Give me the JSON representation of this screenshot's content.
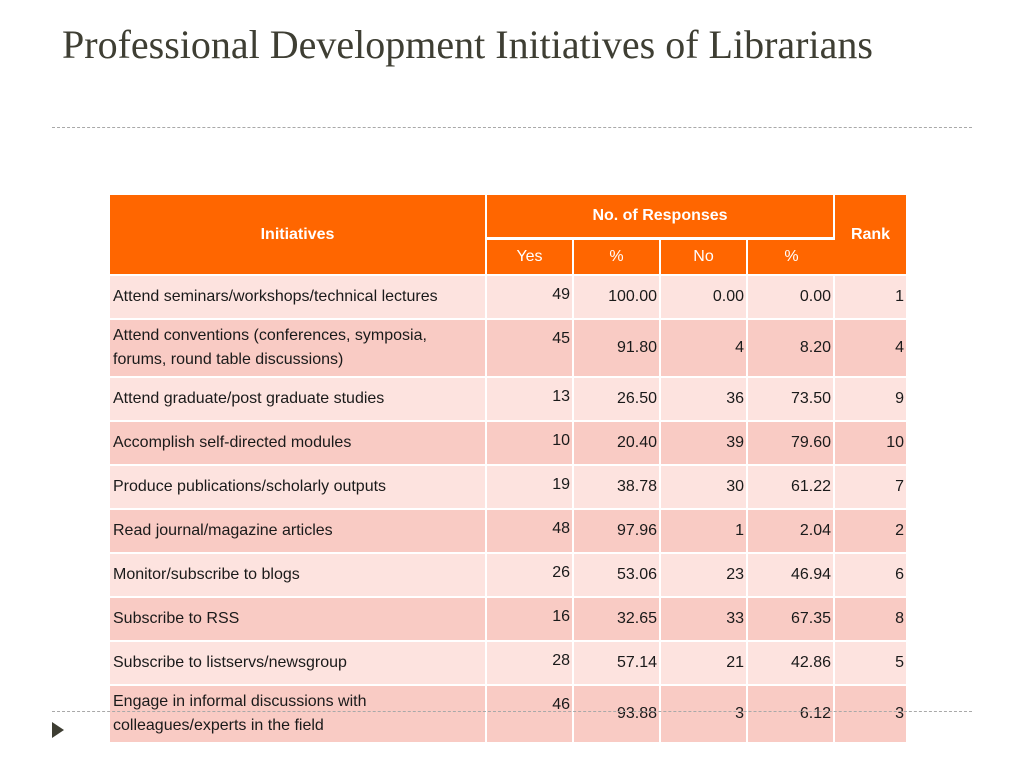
{
  "slide": {
    "title": "Professional Development Initiatives of Librarians"
  },
  "table": {
    "headers": {
      "initiatives": "Initiatives",
      "responses": "No. of Responses",
      "rank": "Rank",
      "yes": "Yes",
      "pct1": "%",
      "no": "No",
      "pct2": "%"
    },
    "rows": [
      {
        "initiative": "Attend seminars/workshops/technical lectures",
        "yes": "49",
        "yes_pct": "100.00",
        "no": "0.00",
        "no_pct": "0.00",
        "rank": "1"
      },
      {
        "initiative": "Attend conventions (conferences, symposia, forums, round table discussions)",
        "yes": "45",
        "yes_pct": "91.80",
        "no": "4",
        "no_pct": "8.20",
        "rank": "4"
      },
      {
        "initiative": "Attend graduate/post graduate studies",
        "yes": "13",
        "yes_pct": "26.50",
        "no": "36",
        "no_pct": "73.50",
        "rank": "9"
      },
      {
        "initiative": "Accomplish self-directed modules",
        "yes": "10",
        "yes_pct": "20.40",
        "no": "39",
        "no_pct": "79.60",
        "rank": "10"
      },
      {
        "initiative": "Produce publications/scholarly outputs",
        "yes": "19",
        "yes_pct": "38.78",
        "no": "30",
        "no_pct": "61.22",
        "rank": "7"
      },
      {
        "initiative": "Read journal/magazine articles",
        "yes": "48",
        "yes_pct": "97.96",
        "no": "1",
        "no_pct": "2.04",
        "rank": "2"
      },
      {
        "initiative": "Monitor/subscribe to blogs",
        "yes": "26",
        "yes_pct": "53.06",
        "no": "23",
        "no_pct": "46.94",
        "rank": "6"
      },
      {
        "initiative": "Subscribe to RSS",
        "yes": "16",
        "yes_pct": "32.65",
        "no": "33",
        "no_pct": "67.35",
        "rank": "8"
      },
      {
        "initiative": "Subscribe to listservs/newsgroup",
        "yes": "28",
        "yes_pct": "57.14",
        "no": "21",
        "no_pct": "42.86",
        "rank": "5"
      },
      {
        "initiative": "Engage in informal discussions with colleagues/experts in the field",
        "yes": "46",
        "yes_pct": "93.88",
        "no": "3",
        "no_pct": "6.12",
        "rank": "3"
      }
    ]
  },
  "colors": {
    "header_orange": "#ff6600",
    "row_light": "#fde3df",
    "row_dark": "#f9cbc4",
    "title_text": "#3e3e33"
  }
}
